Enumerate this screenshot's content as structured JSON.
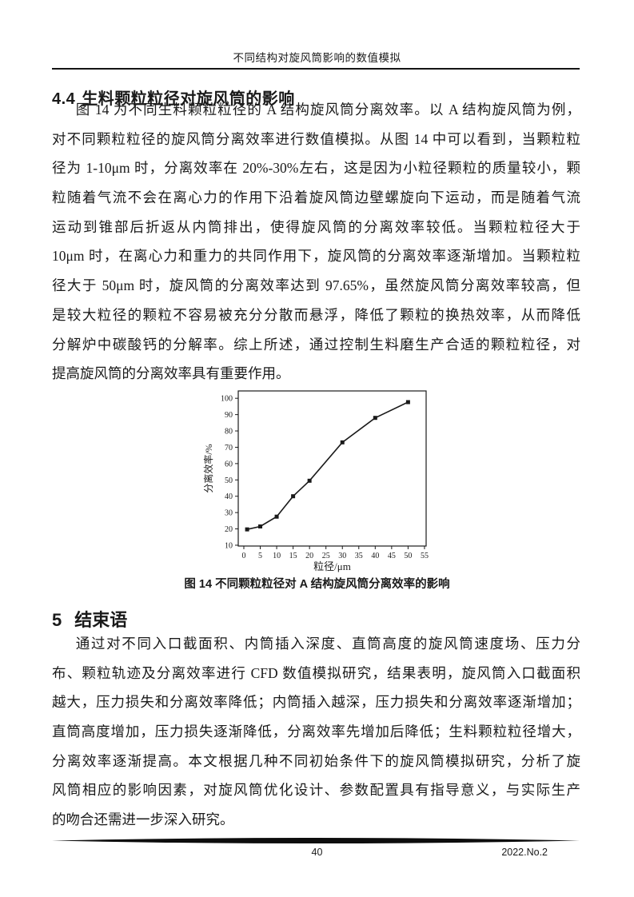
{
  "header": {
    "title": "不同结构对旋风筒影响的数值模拟"
  },
  "section44": {
    "number": "4.4",
    "title": "生料颗粒粒径对旋风筒的影响"
  },
  "para1": {
    "lines": [
      "图 14 为不同生料颗粒粒径的 A 结构旋风筒分离效率。以 A 结构旋风筒为例，",
      "对不同颗粒粒径的旋风筒分离效率进行数值模拟。从图 14 中可以看到，当颗粒粒",
      "径为 1-10μm 时，分离效率在 20%-30%左右，这是因为小粒径颗粒的质量较小，颗",
      "粒随着气流不会在离心力的作用下沿着旋风筒边壁螺旋向下运动，而是随着气流",
      "运动到锥部后折返从内筒排出，使得旋风筒的分离效率较低。当颗粒粒径大于",
      "10μm 时，在离心力和重力的共同作用下，旋风筒的分离效率逐渐增加。当颗粒粒",
      "径大于 50μm 时，旋风筒的分离效率达到 97.65%，虽然旋风筒分离效率较高，但",
      "是较大粒径的颗粒不容易被充分分散而悬浮，降低了颗粒的换热效率，从而降低",
      "分解炉中碳酸钙的分解率。综上所述，通过控制生料磨生产合适的颗粒粒径，对",
      "提高旋风筒的分离效率具有重要作用。"
    ]
  },
  "figure": {
    "caption": "图 14 不同颗粒粒径对 A 结构旋风筒分离效率的影响"
  },
  "section5": {
    "number": "5",
    "title": "结束语"
  },
  "para2": {
    "lines": [
      "通过对不同入口截面积、内筒插入深度、直筒高度的旋风筒速度场、压力分",
      "布、颗粒轨迹及分离效率进行 CFD 数值模拟研究，结果表明，旋风筒入口截面积",
      "越大，压力损失和分离效率降低；内筒插入越深，压力损失和分离效率逐渐增加；",
      "直筒高度增加，压力损失逐渐降低，分离效率先增加后降低；生料颗粒粒径增大，",
      "分离效率逐渐提高。本文根据几种不同初始条件下的旋风筒模拟研究，分析了旋",
      "风筒相应的影响因素，对旋风筒优化设计、参数配置具有指导意义，与实际生产",
      "的吻合还需进一步深入研究。"
    ]
  },
  "footer": {
    "page_number": "40",
    "issue": "2022.No.2"
  },
  "chart_data": {
    "type": "line",
    "title": "",
    "x": [
      1,
      5,
      10,
      15,
      20,
      30,
      40,
      50
    ],
    "y": [
      19.7,
      21.5,
      27.5,
      40,
      49.5,
      73,
      88,
      97.65
    ],
    "xlabel": "粒径/μm",
    "ylabel": "分离效率/%",
    "xticks": [
      0,
      5,
      10,
      15,
      20,
      25,
      30,
      35,
      40,
      45,
      50,
      55
    ],
    "yticks": [
      10,
      20,
      30,
      40,
      50,
      60,
      70,
      80,
      90,
      100
    ],
    "xlim": [
      -1.7,
      55.5
    ],
    "ylim": [
      9.5,
      104.5
    ],
    "grid": false,
    "marker": "filled-square",
    "color": "#1a1a1a"
  }
}
